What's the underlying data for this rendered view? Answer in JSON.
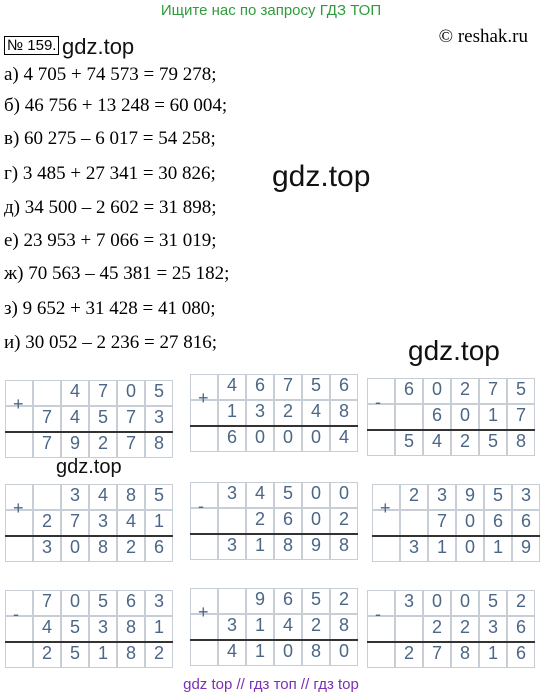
{
  "header": {
    "search_hint": "Ищите нас по запросу ГДЗ ТОП",
    "copyright": "© reshak.ru",
    "number": "№ 159.",
    "watermark": "gdz.top"
  },
  "lines": [
    "а) 4 705 + 74 573 = 79 278;",
    "б) 46 756 + 13 248 = 60 004;",
    "в) 60 275 – 6 017 = 54 258;",
    "г) 3 485 + 27 341 = 30 826;",
    "д) 34 500 – 2 602 = 31 898;",
    "е) 23 953 + 7 066 = 31 019;",
    "ж) 70 563 – 45 381 = 25 182;",
    "з) 9 652 + 31 428 = 41 080;",
    "и) 30 052 – 2 236 = 27 816;"
  ],
  "watermarks": [
    "gdz.top",
    "gdz.top",
    "gdz.top"
  ],
  "columns": [
    {
      "sign": "+",
      "rows": [
        [
          "4",
          "7",
          "0",
          "5"
        ],
        [
          "7",
          "4",
          "5",
          "7",
          "3"
        ],
        [
          "7",
          "9",
          "2",
          "7",
          "8"
        ]
      ]
    },
    {
      "sign": "+",
      "rows": [
        [
          "4",
          "6",
          "7",
          "5",
          "6"
        ],
        [
          "1",
          "3",
          "2",
          "4",
          "8"
        ],
        [
          "6",
          "0",
          "0",
          "0",
          "4"
        ]
      ]
    },
    {
      "sign": "-",
      "rows": [
        [
          "6",
          "0",
          "2",
          "7",
          "5"
        ],
        [
          "6",
          "0",
          "1",
          "7"
        ],
        [
          "5",
          "4",
          "2",
          "5",
          "8"
        ]
      ]
    },
    {
      "sign": "+",
      "rows": [
        [
          "3",
          "4",
          "8",
          "5"
        ],
        [
          "2",
          "7",
          "3",
          "4",
          "1"
        ],
        [
          "3",
          "0",
          "8",
          "2",
          "6"
        ]
      ]
    },
    {
      "sign": "-",
      "rows": [
        [
          "3",
          "4",
          "5",
          "0",
          "0"
        ],
        [
          "2",
          "6",
          "0",
          "2"
        ],
        [
          "3",
          "1",
          "8",
          "9",
          "8"
        ]
      ]
    },
    {
      "sign": "+",
      "rows": [
        [
          "2",
          "3",
          "9",
          "5",
          "3"
        ],
        [
          "7",
          "0",
          "6",
          "6"
        ],
        [
          "3",
          "1",
          "0",
          "1",
          "9"
        ]
      ]
    },
    {
      "sign": "-",
      "rows": [
        [
          "7",
          "0",
          "5",
          "6",
          "3"
        ],
        [
          "4",
          "5",
          "3",
          "8",
          "1"
        ],
        [
          "2",
          "5",
          "1",
          "8",
          "2"
        ]
      ]
    },
    {
      "sign": "+",
      "rows": [
        [
          "9",
          "6",
          "5",
          "2"
        ],
        [
          "3",
          "1",
          "4",
          "2",
          "8"
        ],
        [
          "4",
          "1",
          "0",
          "8",
          "0"
        ]
      ]
    },
    {
      "sign": "-",
      "rows": [
        [
          "3",
          "0",
          "0",
          "5",
          "2"
        ],
        [
          "2",
          "2",
          "3",
          "6"
        ],
        [
          "2",
          "7",
          "8",
          "1",
          "6"
        ]
      ]
    }
  ],
  "footer": "gdz top // гдз топ // гдз top"
}
